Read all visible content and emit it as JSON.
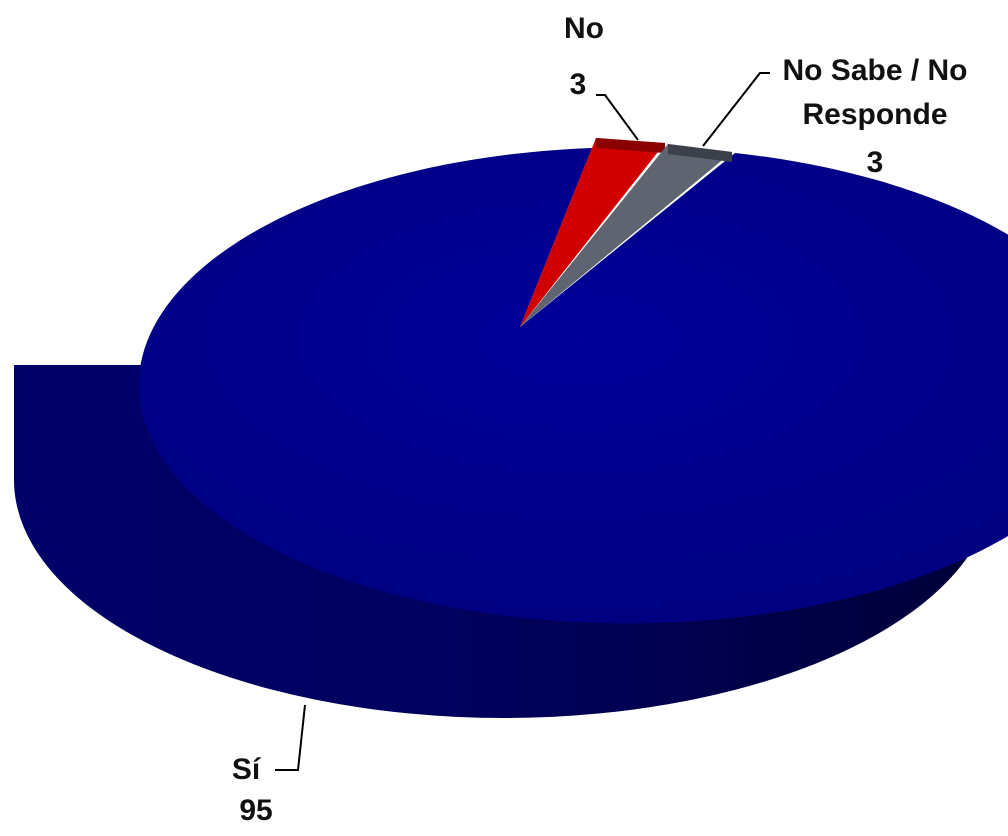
{
  "chart_data": {
    "type": "pie",
    "style": "3d",
    "legend": "none",
    "slices": [
      {
        "label": "Sí",
        "value": 95,
        "value_text": "95",
        "color": "#00008E"
      },
      {
        "label": "No",
        "value": 3,
        "value_text": "3",
        "color": "#D00000"
      },
      {
        "label": "No Sabe / No Responde",
        "label_lines": [
          "No Sabe / No",
          "Responde"
        ],
        "value": 3,
        "value_text": "3",
        "color": "#5E6470"
      }
    ]
  }
}
